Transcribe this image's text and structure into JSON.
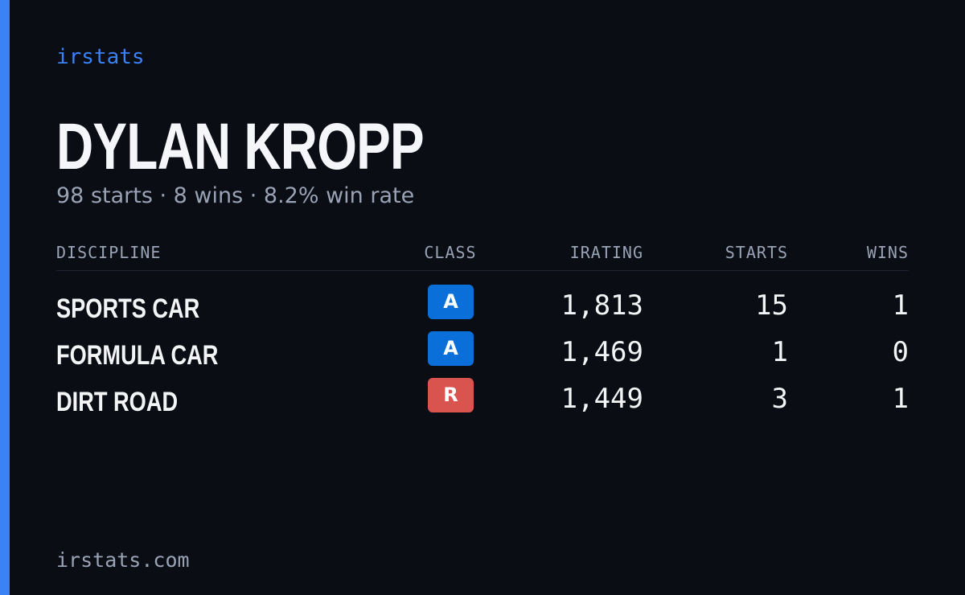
{
  "brand": "irstats",
  "driver": {
    "name": "DYLAN KROPP",
    "summary": "98 starts · 8 wins · 8.2% win rate"
  },
  "table": {
    "headers": [
      "DISCIPLINE",
      "CLASS",
      "IRATING",
      "STARTS",
      "WINS"
    ],
    "rows": [
      {
        "discipline": "SPORTS CAR",
        "class": "A",
        "class_color": "#0a6fd8",
        "irating": "1,813",
        "starts": 15,
        "wins": 1
      },
      {
        "discipline": "FORMULA CAR",
        "class": "A",
        "class_color": "#0a6fd8",
        "irating": "1,469",
        "starts": 1,
        "wins": 0
      },
      {
        "discipline": "DIRT ROAD",
        "class": "R",
        "class_color": "#d9534f",
        "irating": "1,449",
        "starts": 3,
        "wins": 1
      }
    ]
  },
  "footer": "irstats.com"
}
